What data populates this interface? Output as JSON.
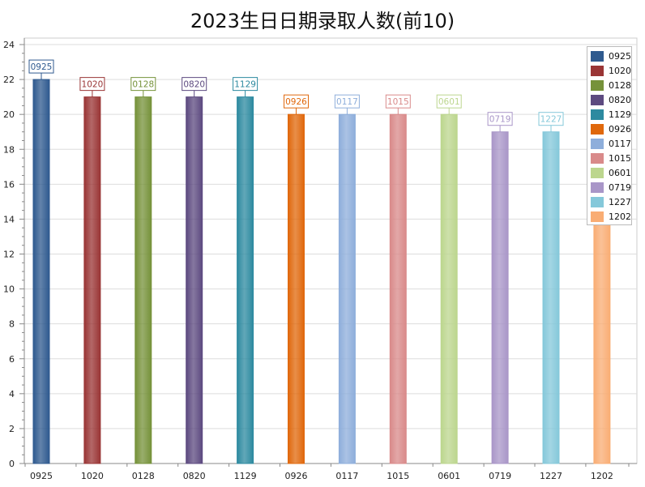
{
  "chart_data": {
    "type": "bar",
    "title": "2023生日日期录取人数(前10)",
    "xlabel": "",
    "ylabel": "",
    "categories": [
      "0925",
      "1020",
      "0128",
      "0820",
      "1129",
      "0926",
      "0117",
      "1015",
      "0601",
      "0719",
      "1227",
      "1202"
    ],
    "values": [
      22,
      21,
      21,
      21,
      21,
      20,
      20,
      20,
      20,
      19,
      19,
      19
    ],
    "colors": [
      "#2f5a8f",
      "#9a3535",
      "#76923a",
      "#5d4a80",
      "#2d8aa0",
      "#e0680c",
      "#8eaedb",
      "#d98a8a",
      "#bcd68e",
      "#a996c8",
      "#85c8da",
      "#f9ad74"
    ],
    "ylim": [
      0,
      24
    ],
    "yticks": [
      0,
      2,
      4,
      6,
      8,
      10,
      12,
      14,
      16,
      18,
      20,
      22,
      24
    ],
    "grid": true,
    "legend": "top-right"
  }
}
